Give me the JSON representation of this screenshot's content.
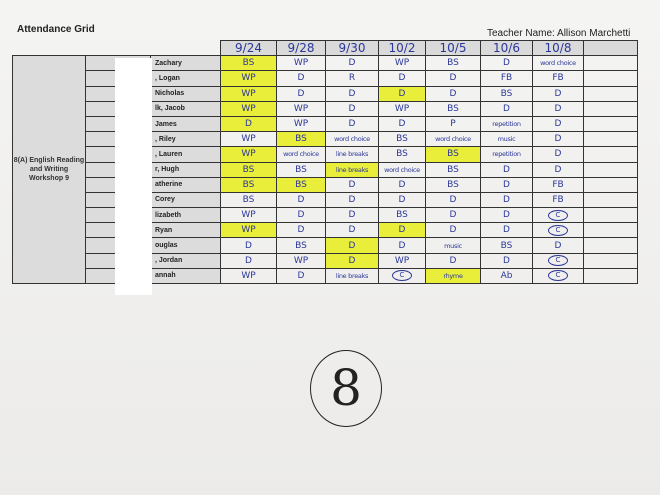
{
  "title": "Attendance Grid",
  "teacher": "Teacher Name: Allison Marchetti",
  "section": "8(A) English Reading and Writing Workshop 9",
  "dates": [
    "9/24",
    "9/28",
    "9/30",
    "10/2",
    "10/5",
    "10/6",
    "10/8"
  ],
  "rows": [
    {
      "name": "Zachary",
      "cells": [
        "BS",
        "WP",
        "D",
        "WP",
        "BS",
        "D",
        "word choice"
      ],
      "highlight": [
        0
      ]
    },
    {
      "name": ", Logan",
      "cells": [
        "WP",
        "D",
        "R",
        "D",
        "D",
        "FB",
        "FB"
      ],
      "highlight": [
        0
      ]
    },
    {
      "name": "Nicholas",
      "cells": [
        "WP",
        "D",
        "D",
        "D",
        "D",
        "BS",
        "D"
      ],
      "highlight": [
        0,
        3
      ]
    },
    {
      "name": "lk, Jacob",
      "cells": [
        "WP",
        "WP",
        "D",
        "WP",
        "BS",
        "D",
        "D"
      ],
      "highlight": [
        0
      ]
    },
    {
      "name": "James",
      "cells": [
        "D",
        "WP",
        "D",
        "D",
        "P",
        "repetition",
        "D"
      ],
      "highlight": [
        0
      ]
    },
    {
      "name": ", Riley",
      "cells": [
        "WP",
        "BS",
        "word choice",
        "BS",
        "word choice",
        "music",
        "D"
      ],
      "highlight": [
        1
      ]
    },
    {
      "name": ", Lauren",
      "cells": [
        "WP",
        "word choice",
        "line breaks",
        "BS",
        "BS",
        "repetition",
        "D"
      ],
      "highlight": [
        0,
        4
      ]
    },
    {
      "name": "r, Hugh",
      "cells": [
        "BS",
        "BS",
        "line breaks",
        "word choice",
        "BS",
        "D",
        "D"
      ],
      "highlight": [
        0,
        2
      ]
    },
    {
      "name": "atherine",
      "cells": [
        "BS",
        "BS",
        "D",
        "D",
        "BS",
        "D",
        "FB"
      ],
      "highlight": [
        0,
        1
      ]
    },
    {
      "name": "Corey",
      "cells": [
        "BS",
        "D",
        "D",
        "D",
        "D",
        "D",
        "FB"
      ],
      "highlight": []
    },
    {
      "name": "lizabeth",
      "cells": [
        "WP",
        "D",
        "D",
        "BS",
        "D",
        "D",
        "C"
      ],
      "highlight": []
    },
    {
      "name": "Ryan",
      "cells": [
        "WP",
        "D",
        "D",
        "D",
        "D",
        "D",
        "C"
      ],
      "highlight": [
        0,
        3
      ]
    },
    {
      "name": "ouglas",
      "cells": [
        "D",
        "BS",
        "D",
        "D",
        "music",
        "BS",
        "D"
      ],
      "highlight": [
        2
      ]
    },
    {
      "name": ", Jordan",
      "cells": [
        "D",
        "WP",
        "D",
        "WP",
        "D",
        "D",
        "C"
      ],
      "highlight": [
        2
      ]
    },
    {
      "name": "annah",
      "cells": [
        "WP",
        "D",
        "line breaks",
        "C",
        "rhyme",
        "Ab",
        "C"
      ],
      "highlight": [
        4
      ]
    }
  ],
  "circled_values": [
    "C"
  ],
  "highlight_color": "#e9ee3a",
  "ink_color": "#2b3799",
  "circled_number": "8"
}
